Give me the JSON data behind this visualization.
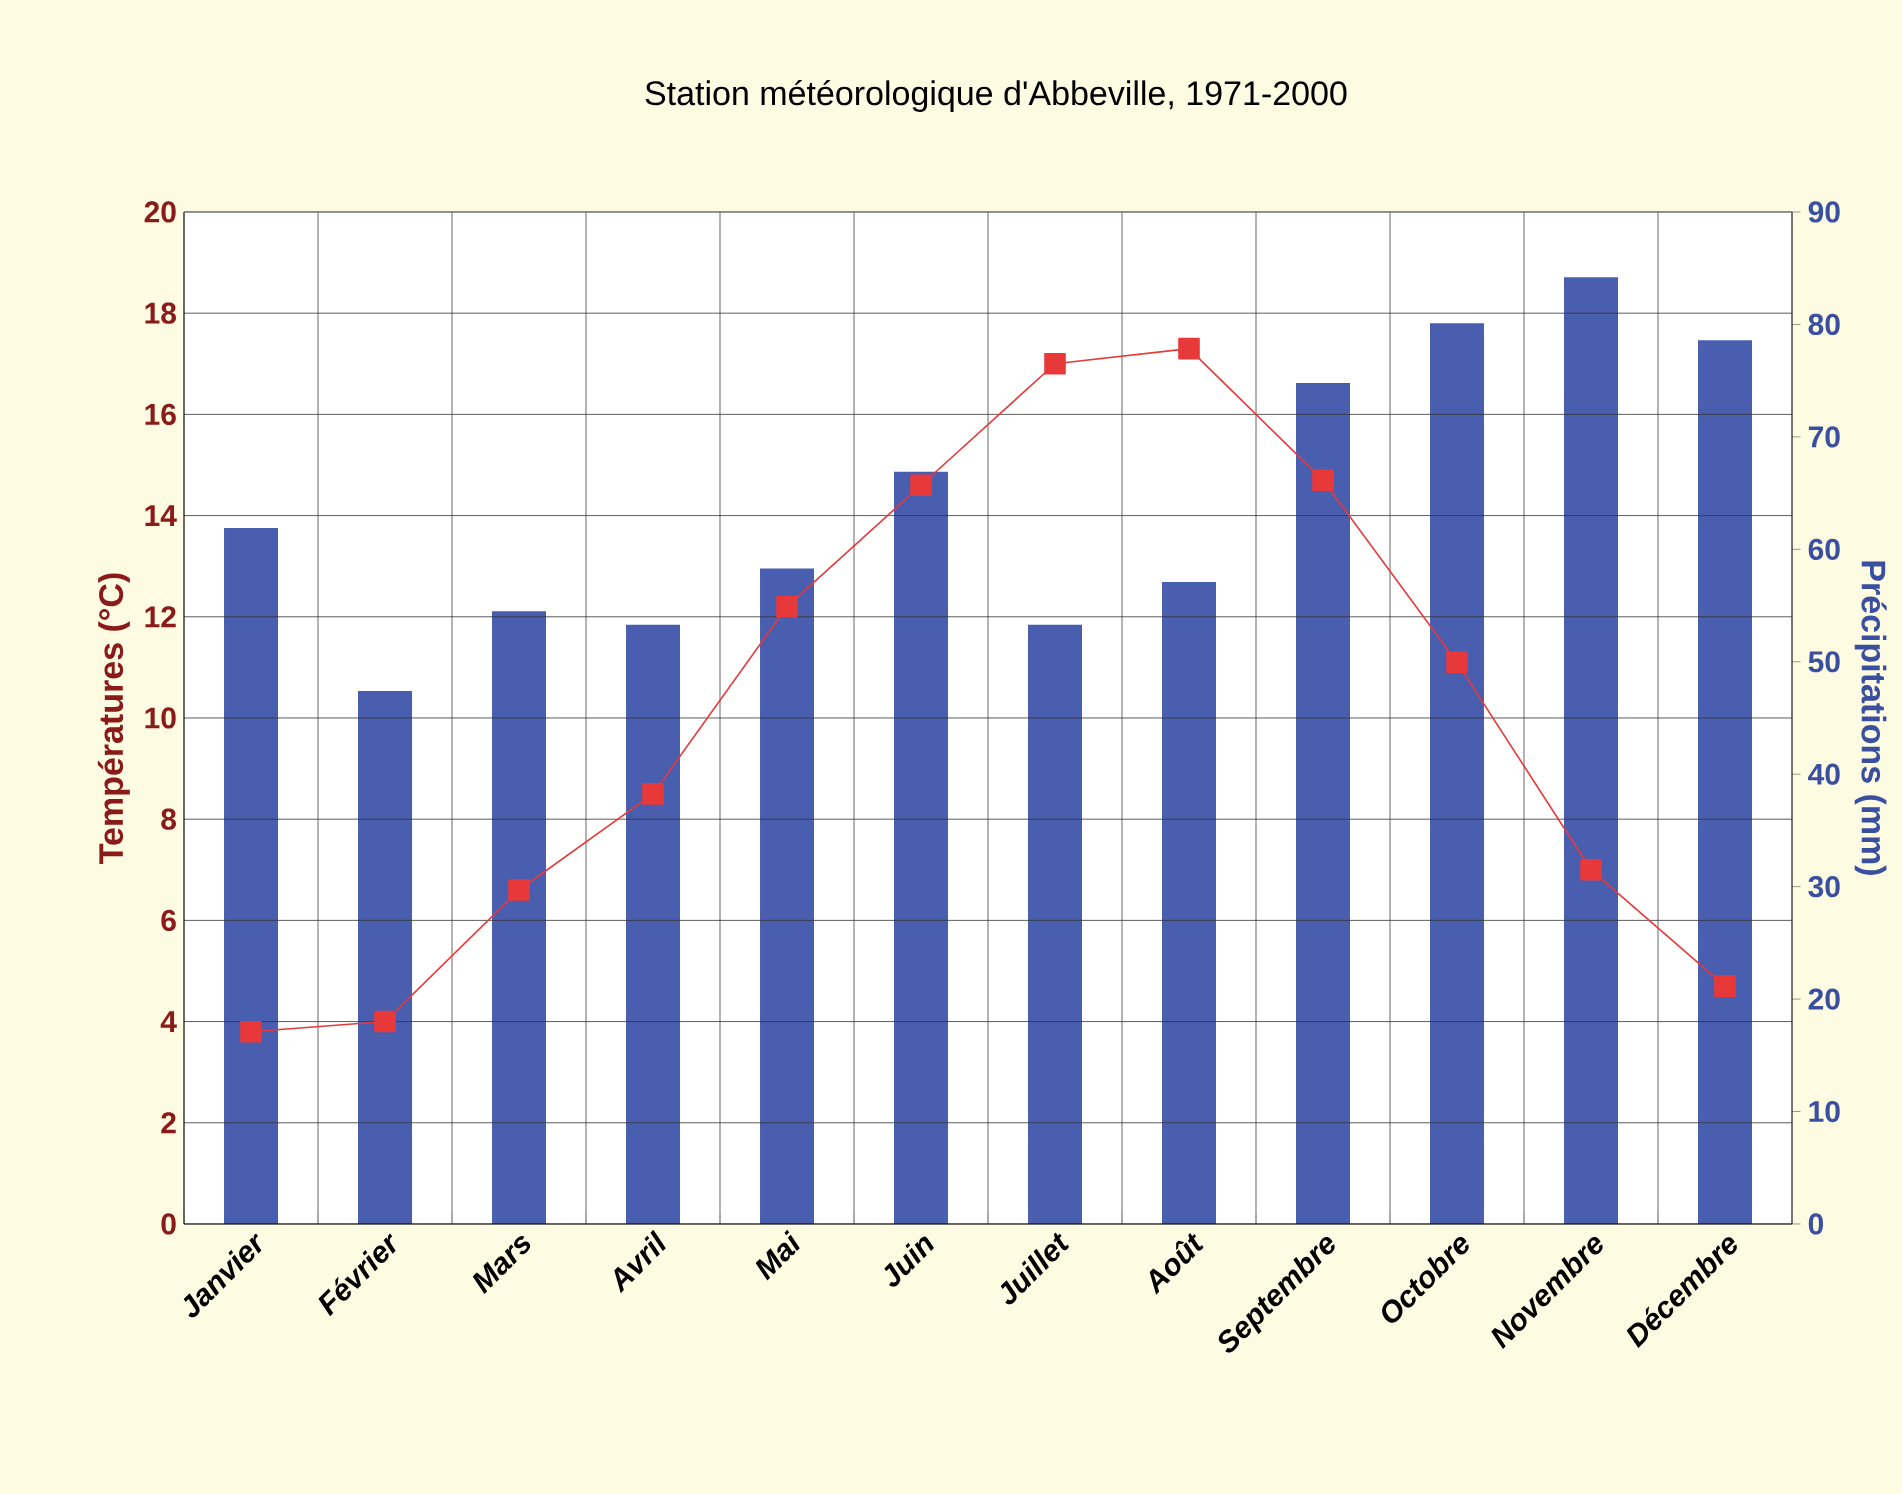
{
  "chart_data": {
    "type": "bar",
    "title": "Station météorologique d'Abbeville, 1971-2000",
    "ylabel": "Températures (°C)",
    "y2label": "Précipitations (mm)",
    "categories": [
      "Janvier",
      "Février",
      "Mars",
      "Avril",
      "Mai",
      "Juin",
      "Juillet",
      "Août",
      "Septembre",
      "Octobre",
      "Novembre",
      "Décembre"
    ],
    "series": [
      {
        "axis": "y2",
        "color": "#4a5eb0",
        "values": [
          61.9,
          47.4,
          54.5,
          53.3,
          58.3,
          66.9,
          53.3,
          57.1,
          74.8,
          80.1,
          84.2,
          78.6
        ]
      },
      {
        "type": "line",
        "axis": "y",
        "color": "#e8393a",
        "marker": "square",
        "values": [
          3.8,
          4.0,
          6.6,
          8.5,
          12.2,
          14.6,
          17.0,
          17.3,
          14.7,
          11.1,
          7.0,
          4.7
        ]
      }
    ],
    "ylim": [
      0,
      20
    ],
    "yticks": [
      0,
      2,
      4,
      6,
      8,
      10,
      12,
      14,
      16,
      18,
      20
    ],
    "y2lim": [
      0,
      90
    ],
    "y2ticks": [
      0,
      10,
      20,
      30,
      40,
      50,
      60,
      70,
      80,
      90
    ],
    "grid": true
  }
}
